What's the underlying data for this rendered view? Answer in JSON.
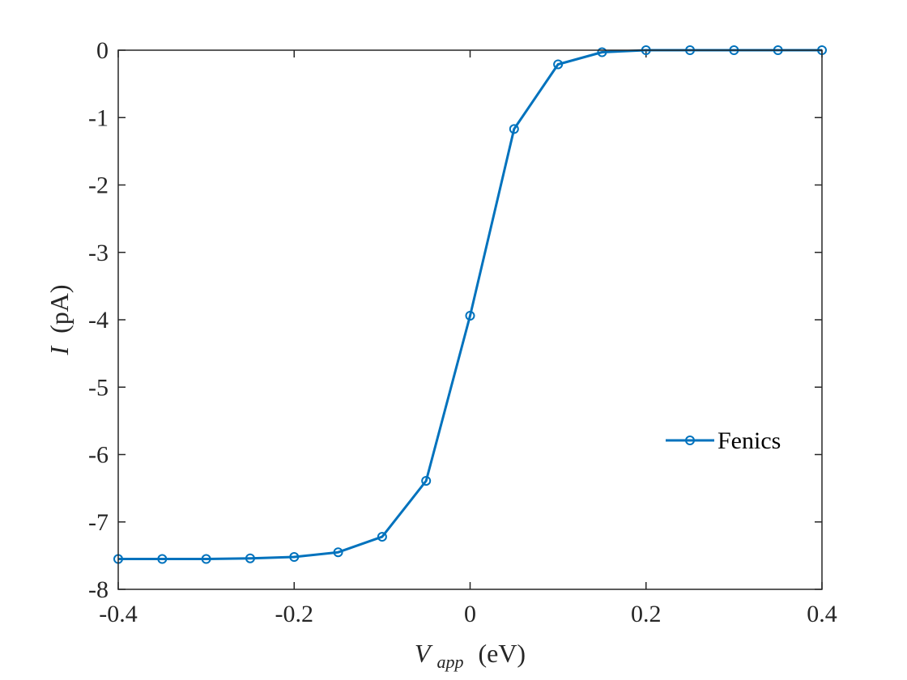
{
  "chart_data": {
    "type": "line",
    "title": "",
    "xlabel": "V_app (eV)",
    "xlabel_parts": {
      "var": "V",
      "sub": "app",
      "unit": "(eV)"
    },
    "ylabel": "I (pA)",
    "ylabel_parts": {
      "var": "I",
      "unit": "(pA)"
    },
    "xlim": [
      -0.4,
      0.4
    ],
    "ylim": [
      -8,
      0
    ],
    "xticks": [
      -0.4,
      -0.2,
      0,
      0.2,
      0.4
    ],
    "xtick_labels": [
      "-0.4",
      "-0.2",
      "0",
      "0.2",
      "0.4"
    ],
    "yticks": [
      0,
      -1,
      -2,
      -3,
      -4,
      -5,
      -6,
      -7,
      -8
    ],
    "ytick_labels": [
      "0",
      "-1",
      "-2",
      "-3",
      "-4",
      "-5",
      "-6",
      "-7",
      "-8"
    ],
    "grid": false,
    "legend_position": "right",
    "series": [
      {
        "name": "Fenics",
        "color": "#0072BD",
        "marker": "circle",
        "x": [
          -0.4,
          -0.35,
          -0.3,
          -0.25,
          -0.2,
          -0.15,
          -0.1,
          -0.05,
          0,
          0.05,
          0.1,
          0.15,
          0.2,
          0.25,
          0.3,
          0.35,
          0.4
        ],
        "y": [
          -7.55,
          -7.55,
          -7.55,
          -7.54,
          -7.52,
          -7.45,
          -7.22,
          -6.39,
          -3.94,
          -1.17,
          -0.21,
          -0.03,
          0,
          0,
          0,
          0,
          0
        ]
      }
    ]
  }
}
